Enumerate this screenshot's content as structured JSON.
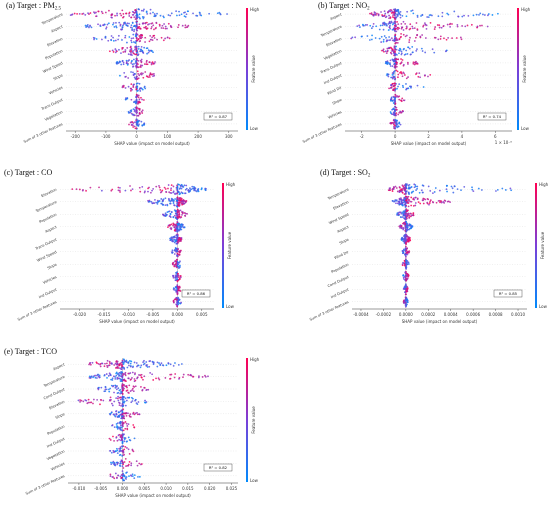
{
  "chart_data": [
    {
      "type": "scatter",
      "panel_label": "(a) Target : PM",
      "panel_label_sub": "2.5",
      "features": [
        "Temperature",
        "Aspect",
        "Elevation",
        "Population",
        "Wind Speed",
        "Slope",
        "Vehicles",
        "Trans Output",
        "Vegetation",
        "Sum of 3 other features"
      ],
      "x_ticks": [
        "-200",
        "-100",
        "0",
        "100",
        "200",
        "300"
      ],
      "x_values": [
        -200,
        -100,
        0,
        100,
        200,
        300
      ],
      "xlim": [
        -230,
        330
      ],
      "xlabel": "SHAP value (impact on model output)",
      "r2_label": "R² = 0.87",
      "axis_multiplier": "",
      "spread": [
        [
          -220,
          320
        ],
        [
          -180,
          180
        ],
        [
          -140,
          110
        ],
        [
          -90,
          70
        ],
        [
          -70,
          60
        ],
        [
          -60,
          60
        ],
        [
          -50,
          40
        ],
        [
          -40,
          30
        ],
        [
          -30,
          25
        ],
        [
          -25,
          25
        ]
      ],
      "colorbar": {
        "high": "High",
        "low": "Low",
        "label": "Feature value"
      }
    },
    {
      "type": "scatter",
      "panel_label": "(b) Target : NO",
      "panel_label_sub": "2",
      "features": [
        "Aspect",
        "Temperature",
        "Elevation",
        "Vegetation",
        "Trans Output",
        "Ind Output",
        "Wind Dir",
        "Slope",
        "Vehicles",
        "Sum of 3 other features"
      ],
      "x_ticks": [
        "-2",
        "0",
        "2",
        "4",
        "6"
      ],
      "x_values": [
        -2,
        0,
        2,
        4,
        6
      ],
      "xlim": [
        -3,
        7
      ],
      "xlabel": "SHAP value (impact on model output)",
      "r2_label": "R² = 0.74",
      "axis_multiplier": "1 × 10⁻⁶",
      "spread": [
        [
          -1.6,
          6.2
        ],
        [
          -2.4,
          5.8
        ],
        [
          -2.8,
          4.0
        ],
        [
          -0.8,
          3.2
        ],
        [
          -0.6,
          1.4
        ],
        [
          -0.5,
          2.2
        ],
        [
          -0.4,
          1.8
        ],
        [
          -0.3,
          0.6
        ],
        [
          -0.3,
          0.5
        ],
        [
          -0.3,
          0.4
        ]
      ],
      "colorbar": {
        "high": "High",
        "low": "Low",
        "label": "Feature value"
      }
    },
    {
      "type": "scatter",
      "panel_label": "(c) Target : CO",
      "panel_label_sub": "",
      "features": [
        "Elevation",
        "Temperature",
        "Population",
        "Aspect",
        "Trans Output",
        "Wind Speed",
        "Slope",
        "Vehicles",
        "Ind Output",
        "Sum of 3 other features"
      ],
      "x_ticks": [
        "-0.020",
        "-0.015",
        "-0.010",
        "-0.005",
        "0.000",
        "0.005"
      ],
      "x_values": [
        -0.02,
        -0.015,
        -0.01,
        -0.005,
        0.0,
        0.005
      ],
      "xlim": [
        -0.024,
        0.0075
      ],
      "xlabel": "SHAP value (impact on model output)",
      "r2_label": "R² = 0.86",
      "axis_multiplier": "",
      "spread": [
        [
          -0.022,
          0.006
        ],
        [
          -0.006,
          0.002
        ],
        [
          -0.003,
          0.002
        ],
        [
          -0.002,
          0.0015
        ],
        [
          -0.0015,
          0.001
        ],
        [
          -0.0012,
          0.001
        ],
        [
          -0.001,
          0.001
        ],
        [
          -0.0009,
          0.0009
        ],
        [
          -0.0008,
          0.0008
        ],
        [
          -0.0008,
          0.0008
        ]
      ],
      "colorbar": {
        "high": "High",
        "low": "Low",
        "label": "Feature value"
      }
    },
    {
      "type": "scatter",
      "panel_label": "(d) Target : SO",
      "panel_label_sub": "2",
      "features": [
        "Temperature",
        "Elevation",
        "Wind Speed",
        "Aspect",
        "Slope",
        "Wind Dir",
        "Population",
        "Cond Output",
        "Ind Output",
        "Sum of 3 other features"
      ],
      "x_ticks": [
        "-0.0004",
        "-0.0002",
        "0.0000",
        "0.0002",
        "0.0004",
        "0.0006",
        "0.0008",
        "0.0010"
      ],
      "x_values": [
        -0.0004,
        -0.0002,
        0.0,
        0.0002,
        0.0004,
        0.0006,
        0.0008,
        0.001
      ],
      "xlim": [
        -0.00048,
        0.00108
      ],
      "xlabel": "SHAP value (impact on model output)",
      "r2_label": "R² = 0.85",
      "axis_multiplier": "",
      "spread": [
        [
          -0.00016,
          0.001
        ],
        [
          -0.00012,
          0.0004
        ],
        [
          -8e-05,
          8e-05
        ],
        [
          -6e-05,
          6e-05
        ],
        [
          -4e-05,
          4e-05
        ],
        [
          -3e-05,
          3e-05
        ],
        [
          -3e-05,
          3e-05
        ],
        [
          -3e-05,
          3e-05
        ],
        [
          -2e-05,
          2e-05
        ],
        [
          -2e-05,
          2e-05
        ]
      ],
      "colorbar": {
        "high": "High",
        "low": "Low",
        "label": "Feature value"
      }
    },
    {
      "type": "scatter",
      "panel_label": "(e) Target : TCO",
      "panel_label_sub": "",
      "features": [
        "Aspect",
        "Temperature",
        "Cond Output",
        "Elevation",
        "Slope",
        "Population",
        "Ind Output",
        "Vegetation",
        "Vehicles",
        "Sum of 3 other features"
      ],
      "x_ticks": [
        "-0.010",
        "-0.005",
        "0.000",
        "0.005",
        "0.010",
        "0.015",
        "0.020",
        "0.025"
      ],
      "x_values": [
        -0.01,
        -0.005,
        0.0,
        0.005,
        0.01,
        0.015,
        0.02,
        0.025
      ],
      "xlim": [
        -0.0125,
        0.0265
      ],
      "xlabel": "SHAP value (impact on model output)",
      "r2_label": "R² = 0.82",
      "axis_multiplier": "",
      "spread": [
        [
          -0.008,
          0.014
        ],
        [
          -0.008,
          0.02
        ],
        [
          -0.006,
          0.006
        ],
        [
          -0.011,
          0.006
        ],
        [
          -0.003,
          0.004
        ],
        [
          -0.003,
          0.003
        ],
        [
          -0.003,
          0.003
        ],
        [
          -0.003,
          0.004
        ],
        [
          -0.003,
          0.005
        ],
        [
          -0.003,
          0.004
        ]
      ],
      "colorbar": {
        "high": "High",
        "low": "Low",
        "label": "Feature value"
      }
    }
  ],
  "colors": {
    "high": "#ff0052",
    "low": "#008bfb"
  }
}
